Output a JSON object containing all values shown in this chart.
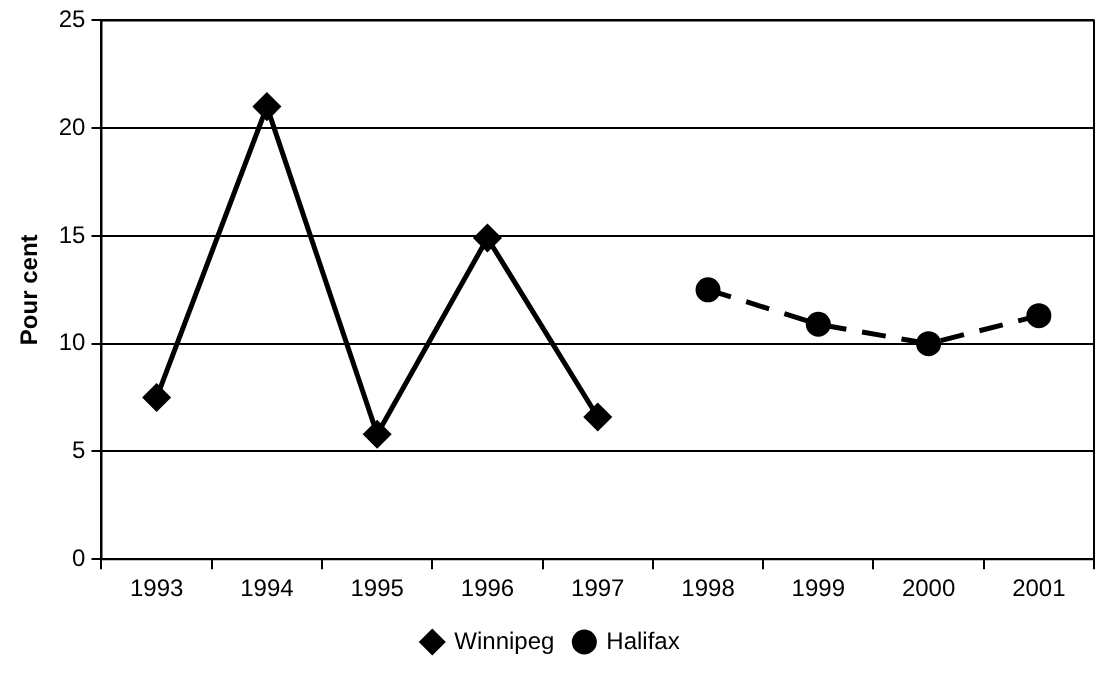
{
  "chart_data": {
    "type": "line",
    "ylabel": "Pour cent",
    "categories": [
      "1993",
      "1994",
      "1995",
      "1996",
      "1997",
      "1998",
      "1999",
      "2000",
      "2001"
    ],
    "series": [
      {
        "name": "Winnipeg",
        "color": "#000000",
        "marker": "diamond",
        "line_style": "solid",
        "values": [
          7.5,
          21,
          5.8,
          14.9,
          6.6,
          null,
          null,
          null,
          null
        ]
      },
      {
        "name": "Halifax",
        "color": "#000000",
        "marker": "circle",
        "line_style": "dashed",
        "values": [
          null,
          null,
          null,
          null,
          null,
          12.5,
          10.9,
          10,
          11.3
        ]
      }
    ],
    "ylim": [
      0,
      25
    ],
    "yticks": [
      0,
      5,
      10,
      15,
      20,
      25
    ],
    "grid": "y",
    "legend": "bottom"
  }
}
